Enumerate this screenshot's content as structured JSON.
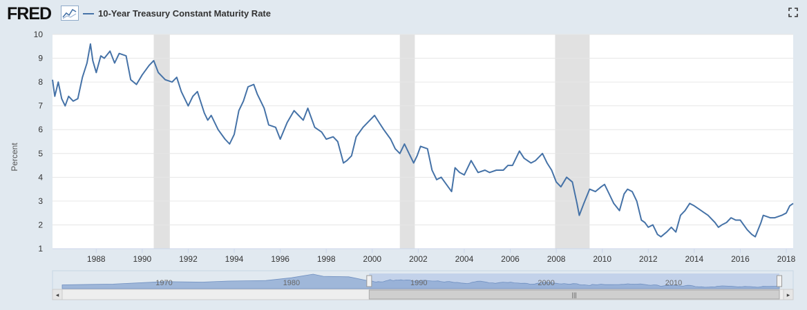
{
  "header": {
    "logo": "FRED",
    "logo_icon": "line-chart-icon",
    "series_label": "10-Year Treasury Constant Maturity Rate",
    "fullscreen_icon": "fullscreen-icon"
  },
  "colors": {
    "line": "#4572a7",
    "recession": "#e1e1e1",
    "background": "#e1e9f0",
    "navigator": "#a8bfe0"
  },
  "navigator": {
    "labels": [
      "1970",
      "1980",
      "1990",
      "2000",
      "2010"
    ],
    "selected_range": [
      1986.1,
      2018.3
    ],
    "scroll_icon": "grip-icon",
    "left_arrow": "◂",
    "right_arrow": "▸"
  },
  "chart_data": {
    "type": "line",
    "title": "10-Year Treasury Constant Maturity Rate",
    "xlabel": "",
    "ylabel": "Percent",
    "xlim": [
      1986.1,
      2018.3
    ],
    "ylim": [
      1,
      10
    ],
    "xticks": [
      "1988",
      "1990",
      "1992",
      "1994",
      "1996",
      "1998",
      "2000",
      "2002",
      "2004",
      "2006",
      "2008",
      "2010",
      "2012",
      "2014",
      "2016",
      "2018"
    ],
    "yticks": [
      "1",
      "2",
      "3",
      "4",
      "5",
      "6",
      "7",
      "8",
      "9",
      "10"
    ],
    "recessions": [
      [
        1990.5,
        1991.2
      ],
      [
        2001.2,
        2001.85
      ],
      [
        2007.95,
        2009.45
      ]
    ],
    "series": [
      {
        "name": "10-Year Treasury Constant Maturity Rate",
        "x": [
          1986.1,
          1986.2,
          1986.35,
          1986.5,
          1986.65,
          1986.8,
          1987.0,
          1987.2,
          1987.4,
          1987.6,
          1987.75,
          1987.85,
          1988.0,
          1988.2,
          1988.35,
          1988.6,
          1988.8,
          1989.0,
          1989.3,
          1989.5,
          1989.75,
          1990.0,
          1990.3,
          1990.5,
          1990.7,
          1991.0,
          1991.3,
          1991.5,
          1991.7,
          1991.85,
          1992.0,
          1992.2,
          1992.4,
          1992.7,
          1992.85,
          1993.0,
          1993.3,
          1993.6,
          1993.8,
          1994.0,
          1994.2,
          1994.4,
          1994.6,
          1994.85,
          1995.0,
          1995.3,
          1995.5,
          1995.8,
          1996.0,
          1996.3,
          1996.6,
          1996.8,
          1997.0,
          1997.2,
          1997.5,
          1997.8,
          1998.0,
          1998.3,
          1998.5,
          1998.75,
          1998.9,
          1999.1,
          1999.3,
          1999.6,
          1999.9,
          2000.1,
          2000.3,
          2000.5,
          2000.8,
          2001.0,
          2001.2,
          2001.4,
          2001.6,
          2001.8,
          2001.95,
          2002.1,
          2002.4,
          2002.6,
          2002.8,
          2003.0,
          2003.3,
          2003.45,
          2003.6,
          2003.8,
          2004.0,
          2004.3,
          2004.6,
          2004.9,
          2005.1,
          2005.4,
          2005.7,
          2005.9,
          2006.1,
          2006.4,
          2006.6,
          2006.9,
          2007.1,
          2007.4,
          2007.6,
          2007.8,
          2008.0,
          2008.2,
          2008.45,
          2008.7,
          2008.9,
          2009.0,
          2009.2,
          2009.45,
          2009.7,
          2009.95,
          2010.1,
          2010.3,
          2010.5,
          2010.75,
          2010.95,
          2011.1,
          2011.3,
          2011.5,
          2011.7,
          2011.85,
          2012.0,
          2012.2,
          2012.4,
          2012.55,
          2012.8,
          2013.0,
          2013.2,
          2013.4,
          2013.6,
          2013.8,
          2014.0,
          2014.3,
          2014.6,
          2014.9,
          2015.05,
          2015.2,
          2015.4,
          2015.6,
          2015.8,
          2016.0,
          2016.3,
          2016.5,
          2016.65,
          2016.9,
          2017.0,
          2017.3,
          2017.5,
          2017.8,
          2018.0,
          2018.15,
          2018.3
        ],
        "values": [
          8.1,
          7.4,
          8.0,
          7.3,
          7.0,
          7.4,
          7.2,
          7.3,
          8.2,
          8.8,
          9.6,
          8.9,
          8.4,
          9.1,
          9.0,
          9.3,
          8.8,
          9.2,
          9.1,
          8.1,
          7.9,
          8.3,
          8.7,
          8.9,
          8.4,
          8.1,
          8.0,
          8.2,
          7.6,
          7.3,
          7.0,
          7.4,
          7.6,
          6.7,
          6.4,
          6.6,
          6.0,
          5.6,
          5.4,
          5.8,
          6.8,
          7.2,
          7.8,
          7.9,
          7.5,
          6.9,
          6.2,
          6.1,
          5.6,
          6.3,
          6.8,
          6.6,
          6.4,
          6.9,
          6.1,
          5.9,
          5.6,
          5.7,
          5.5,
          4.6,
          4.7,
          4.9,
          5.7,
          6.1,
          6.4,
          6.6,
          6.3,
          6.0,
          5.6,
          5.2,
          5.0,
          5.4,
          5.0,
          4.6,
          4.9,
          5.3,
          5.2,
          4.3,
          3.9,
          4.0,
          3.6,
          3.4,
          4.4,
          4.2,
          4.1,
          4.7,
          4.2,
          4.3,
          4.2,
          4.3,
          4.3,
          4.5,
          4.5,
          5.1,
          4.8,
          4.6,
          4.7,
          5.0,
          4.6,
          4.3,
          3.8,
          3.6,
          4.0,
          3.8,
          2.9,
          2.4,
          2.9,
          3.5,
          3.4,
          3.6,
          3.7,
          3.3,
          2.9,
          2.6,
          3.3,
          3.5,
          3.4,
          3.0,
          2.2,
          2.1,
          1.9,
          2.0,
          1.6,
          1.5,
          1.7,
          1.9,
          1.7,
          2.4,
          2.6,
          2.9,
          2.8,
          2.6,
          2.4,
          2.1,
          1.9,
          2.0,
          2.1,
          2.3,
          2.2,
          2.2,
          1.8,
          1.6,
          1.5,
          2.1,
          2.4,
          2.3,
          2.3,
          2.4,
          2.5,
          2.8,
          2.9
        ]
      }
    ]
  }
}
